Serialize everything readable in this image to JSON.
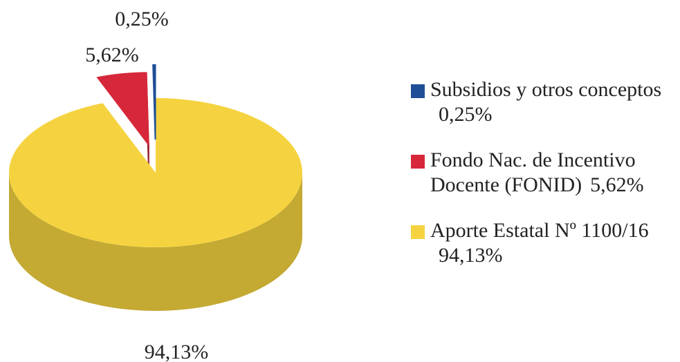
{
  "chart_data": {
    "type": "pie",
    "categories": [
      "Subsidios y otros conceptos",
      "Fondo Nac. de Incentivo Docente (FONID)",
      "Aporte Estatal Nº 1100/16"
    ],
    "values": [
      0.25,
      5.62,
      94.13
    ],
    "value_labels": [
      "0,25%",
      "5,62%",
      "94,13%"
    ],
    "colors": [
      "#1f4e96",
      "#d6283a",
      "#f5d340"
    ]
  }
}
